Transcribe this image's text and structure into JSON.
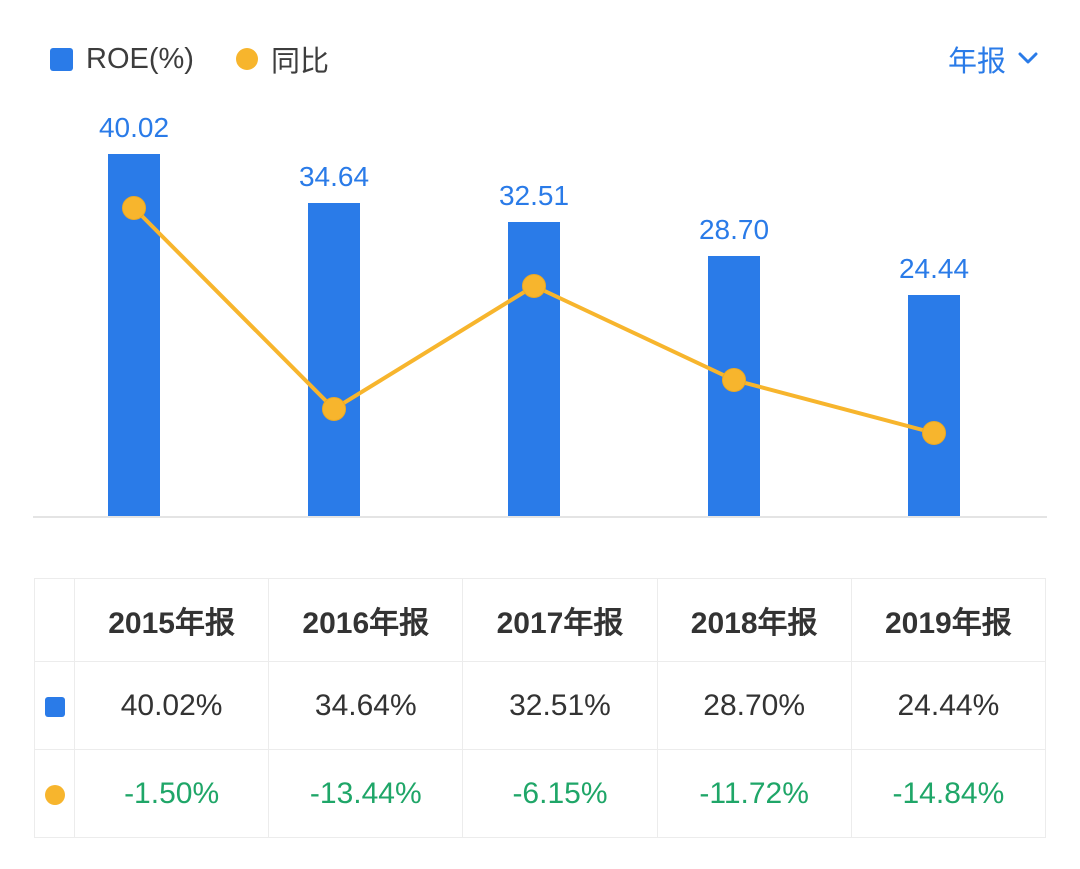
{
  "header": {
    "legend": [
      {
        "label": "ROE(%)",
        "shape": "square",
        "color": "#2A7BE8"
      },
      {
        "label": "同比",
        "shape": "circle",
        "color": "#F7B52D"
      }
    ],
    "period_selector": {
      "label": "年报",
      "color": "#2A7BE8"
    }
  },
  "chart_data": {
    "type": "bar+line",
    "categories": [
      "2015年报",
      "2016年报",
      "2017年报",
      "2018年报",
      "2019年报"
    ],
    "series": [
      {
        "name": "ROE(%)",
        "type": "bar",
        "color": "#2A7BE8",
        "values": [
          40.02,
          34.64,
          32.51,
          28.7,
          24.44
        ],
        "data_labels": [
          "40.02",
          "34.64",
          "32.51",
          "28.70",
          "24.44"
        ]
      },
      {
        "name": "同比",
        "type": "line",
        "color": "#F7B52D",
        "values": [
          -1.5,
          -13.44,
          -6.15,
          -11.72,
          -14.84
        ],
        "data_labels": [
          "-1.50%",
          "-13.44%",
          "-6.15%",
          "-11.72%",
          "-14.84%"
        ]
      }
    ],
    "bar_axis": {
      "min": 0,
      "max": 45
    },
    "line_axis": {
      "min": -17,
      "max": 1
    },
    "grid": false,
    "legend_position": "top-left"
  },
  "table": {
    "columns": [
      "2015年报",
      "2016年报",
      "2017年报",
      "2018年报",
      "2019年报"
    ],
    "rows": [
      {
        "icon": "square",
        "icon_color": "#2A7BE8",
        "value_color": "#333333",
        "values": [
          "40.02%",
          "34.64%",
          "32.51%",
          "28.70%",
          "24.44%"
        ]
      },
      {
        "icon": "circle",
        "icon_color": "#F7B52D",
        "value_color": "#1FA668",
        "values": [
          "-1.50%",
          "-13.44%",
          "-6.15%",
          "-11.72%",
          "-14.84%"
        ]
      }
    ]
  }
}
